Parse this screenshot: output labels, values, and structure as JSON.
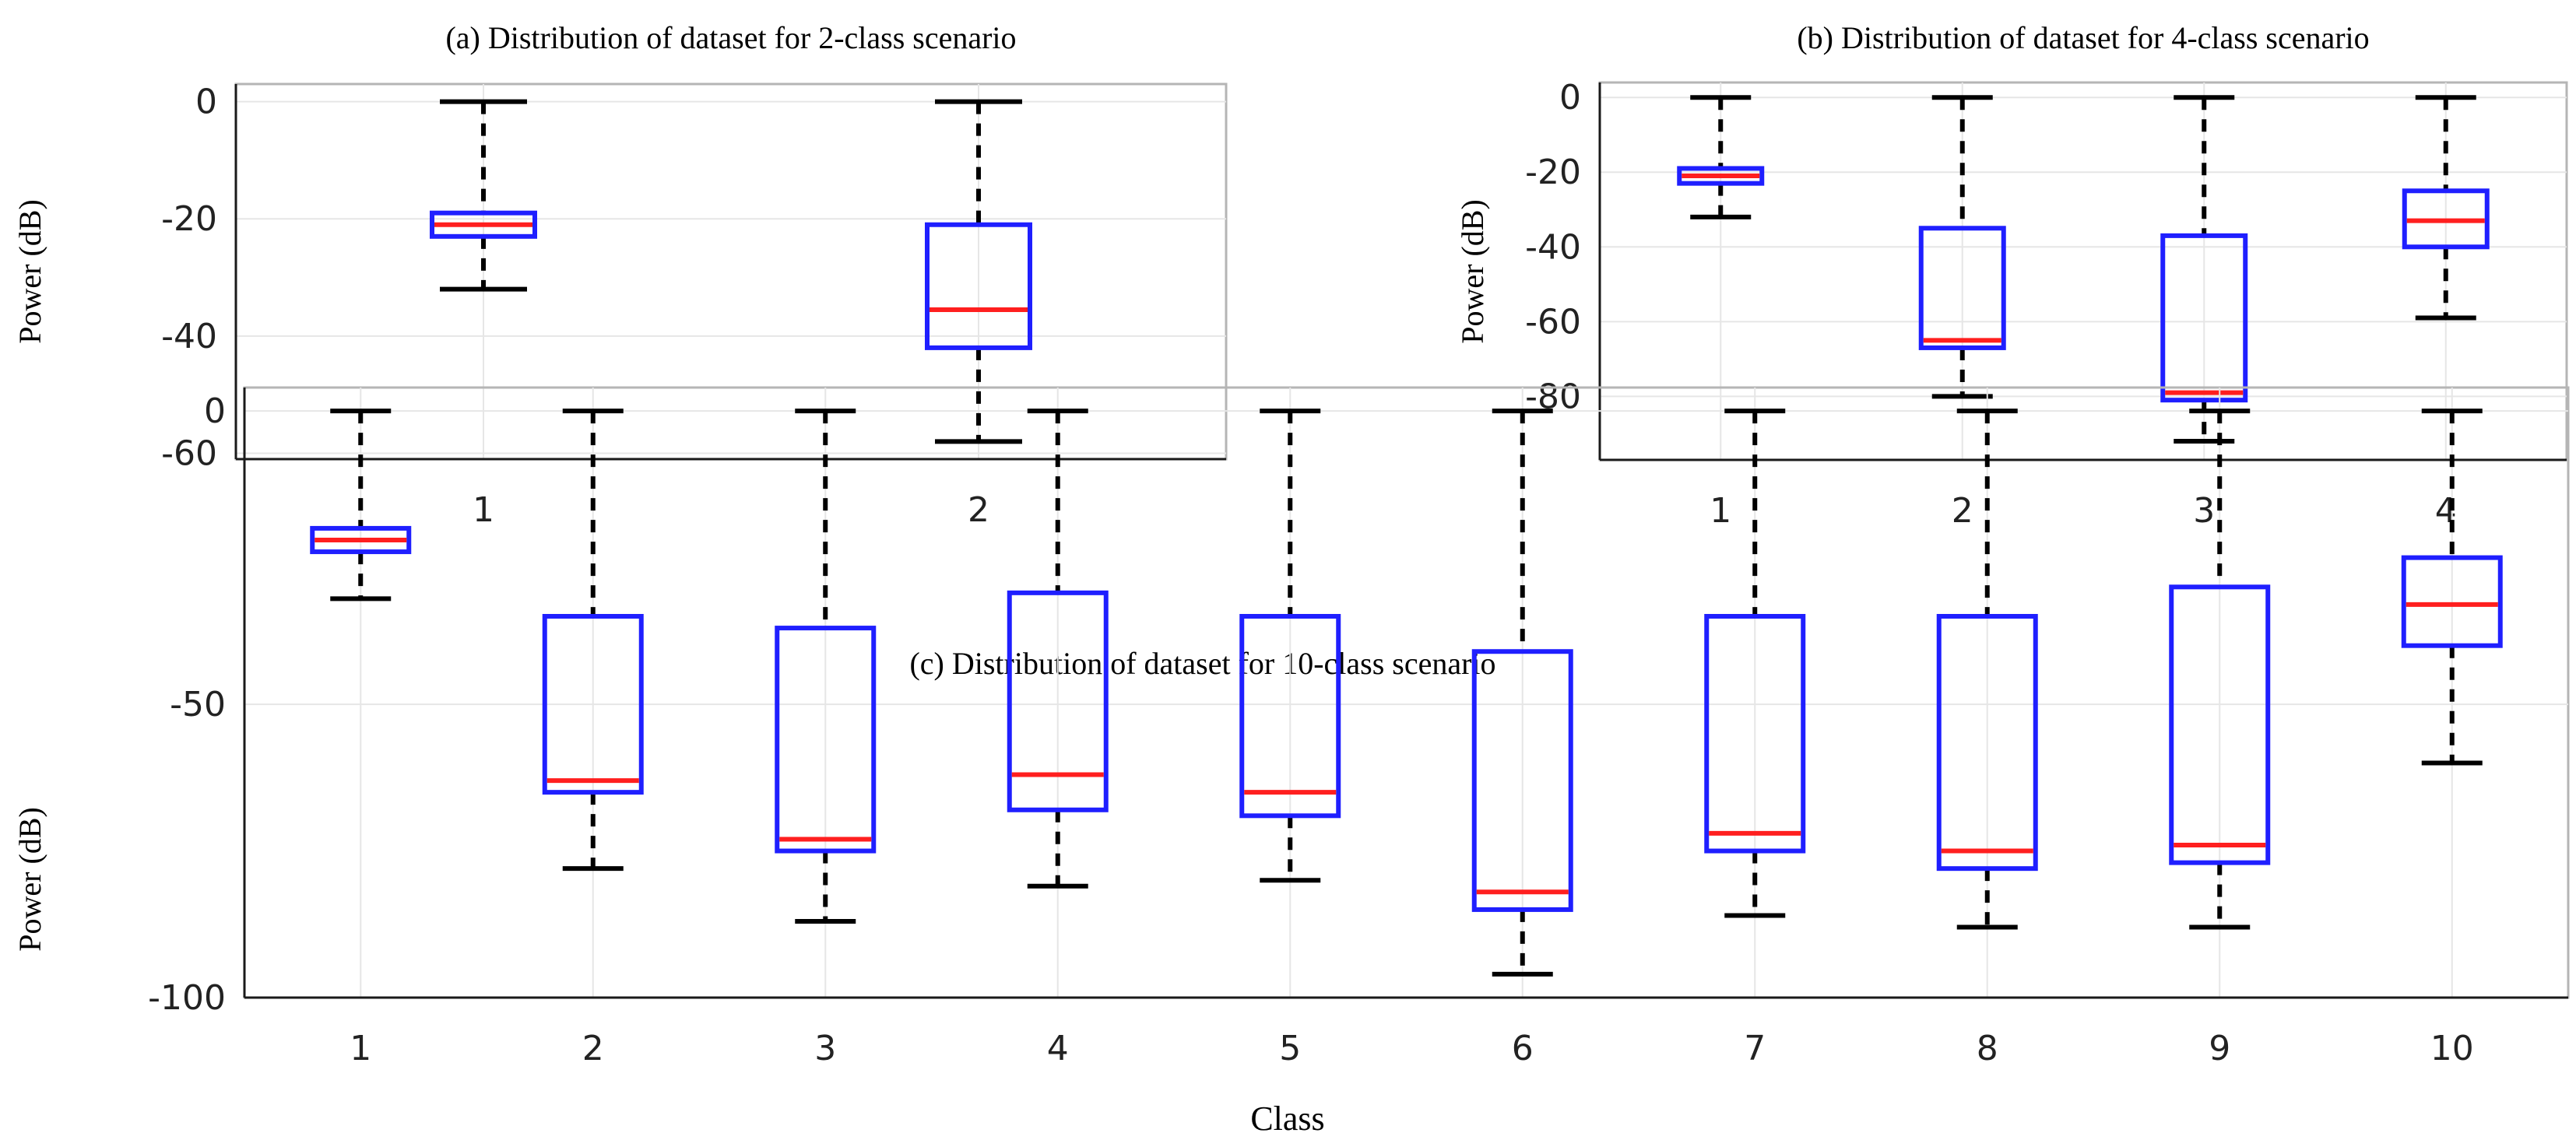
{
  "chart_data": [
    {
      "type": "box",
      "title": "(a) Distribution of dataset for 2-class scenario",
      "xlabel": "",
      "ylabel": "Power (dB)",
      "ylim": [
        -61,
        3
      ],
      "yticks": [
        0,
        -20,
        -40,
        -60
      ],
      "yticklabels": [
        "0",
        "-20",
        "-40",
        "-60"
      ],
      "categories": [
        "1",
        "2"
      ],
      "boxes": [
        {
          "whisker_low": -32,
          "q1": -23,
          "median": -21,
          "q3": -19,
          "whisker_high": 0
        },
        {
          "whisker_low": -58,
          "q1": -42,
          "median": -35.5,
          "q3": -21,
          "whisker_high": 0
        }
      ],
      "grid": true,
      "colors": {
        "box": "#1f1fff",
        "median": "#ff1f1f",
        "whisker": "#000000",
        "grid": "#e6e6e6"
      }
    },
    {
      "type": "box",
      "title": "(b) Distribution of dataset for 4-class scenario",
      "xlabel": "",
      "ylabel": "Power (dB)",
      "ylim": [
        -97,
        4
      ],
      "yticks": [
        0,
        -20,
        -40,
        -60,
        -80
      ],
      "yticklabels": [
        "0",
        "-20",
        "-40",
        "-60",
        "-80"
      ],
      "categories": [
        "1",
        "2",
        "3",
        "4"
      ],
      "boxes": [
        {
          "whisker_low": -32,
          "q1": -23,
          "median": -21,
          "q3": -19,
          "whisker_high": 0
        },
        {
          "whisker_low": -80,
          "q1": -67,
          "median": -65,
          "q3": -35,
          "whisker_high": 0
        },
        {
          "whisker_low": -92,
          "q1": -81,
          "median": -79,
          "q3": -37,
          "whisker_high": 0
        },
        {
          "whisker_low": -59,
          "q1": -40,
          "median": -33,
          "q3": -25,
          "whisker_high": 0
        }
      ],
      "grid": true,
      "colors": {
        "box": "#1f1fff",
        "median": "#ff1f1f",
        "whisker": "#000000",
        "grid": "#e6e6e6"
      }
    },
    {
      "type": "box",
      "title": "(c) Distribution of dataset for 10-class scenario",
      "xlabel": "Class",
      "ylabel": "Power (dB)",
      "ylim": [
        -100,
        4
      ],
      "yticks": [
        0,
        -50,
        -100
      ],
      "yticklabels": [
        "0",
        "-50",
        "-100"
      ],
      "categories": [
        "1",
        "2",
        "3",
        "4",
        "5",
        "6",
        "7",
        "8",
        "9",
        "10"
      ],
      "boxes": [
        {
          "whisker_low": -32,
          "q1": -24,
          "median": -22,
          "q3": -20,
          "whisker_high": 0
        },
        {
          "whisker_low": -78,
          "q1": -65,
          "median": -63,
          "q3": -35,
          "whisker_high": 0
        },
        {
          "whisker_low": -87,
          "q1": -75,
          "median": -73,
          "q3": -37,
          "whisker_high": 0
        },
        {
          "whisker_low": -81,
          "q1": -68,
          "median": -62,
          "q3": -31,
          "whisker_high": 0
        },
        {
          "whisker_low": -80,
          "q1": -69,
          "median": -65,
          "q3": -35,
          "whisker_high": 0
        },
        {
          "whisker_low": -96,
          "q1": -85,
          "median": -82,
          "q3": -41,
          "whisker_high": 0
        },
        {
          "whisker_low": -86,
          "q1": -75,
          "median": -72,
          "q3": -35,
          "whisker_high": 0
        },
        {
          "whisker_low": -88,
          "q1": -78,
          "median": -75,
          "q3": -35,
          "whisker_high": 0
        },
        {
          "whisker_low": -88,
          "q1": -77,
          "median": -74,
          "q3": -30,
          "whisker_high": 0
        },
        {
          "whisker_low": -60,
          "q1": -40,
          "median": -33,
          "q3": -25,
          "whisker_high": 0
        }
      ],
      "grid": true,
      "colors": {
        "box": "#1f1fff",
        "median": "#ff1f1f",
        "whisker": "#000000",
        "grid": "#e6e6e6"
      }
    }
  ]
}
